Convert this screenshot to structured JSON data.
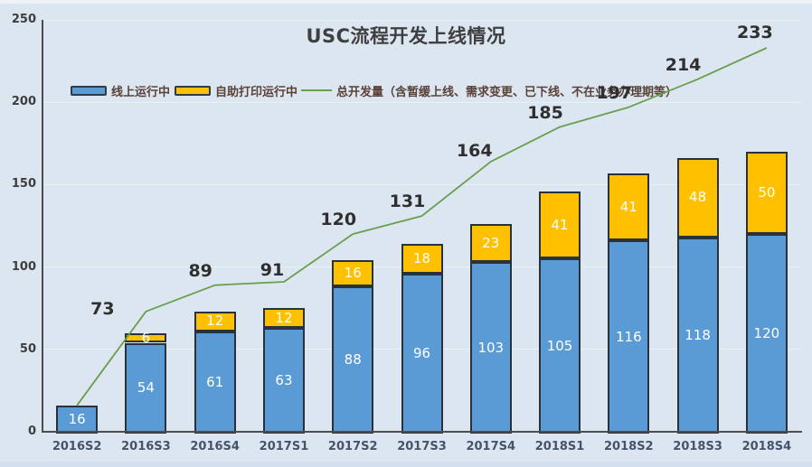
{
  "title": "USC流程开发上线情况",
  "legend": {
    "items": [
      {
        "label": "线上运行中",
        "swatch": "bar",
        "color": "#5b9bd5"
      },
      {
        "label": "自助打印运行中",
        "swatch": "bar",
        "color": "#ffc000"
      },
      {
        "label": "总开发量（含暂缓上线、需求变更、已下线、不在业务办理期等）",
        "swatch": "line",
        "color": "#6a9e4f"
      }
    ]
  },
  "chart_data": {
    "type": "bar",
    "subtype": "stacked-bars-with-total-line",
    "title": "USC流程开发上线情况",
    "categories": [
      "2016S2",
      "2016S3",
      "2016S4",
      "2017S1",
      "2017S2",
      "2017S3",
      "2017S4",
      "2018S1",
      "2018S2",
      "2018S3",
      "2018S4"
    ],
    "series": [
      {
        "name": "线上运行中",
        "type": "bar",
        "color": "#5b9bd5",
        "values": [
          16,
          54,
          61,
          63,
          88,
          96,
          103,
          105,
          116,
          118,
          120
        ]
      },
      {
        "name": "自助打印运行中",
        "type": "bar",
        "color": "#ffc000",
        "values": [
          0,
          6,
          12,
          12,
          16,
          18,
          23,
          41,
          41,
          48,
          50
        ]
      },
      {
        "name": "总开发量（含暂缓上线、需求变更、已下线、不在业务办理期等）",
        "type": "line",
        "color": "#6a9e4f",
        "values": [
          16,
          73,
          89,
          91,
          120,
          131,
          164,
          185,
          197,
          214,
          233
        ],
        "labels_from_index": 1
      }
    ],
    "xlabel": "",
    "ylabel": "",
    "ylim": [
      0,
      250
    ],
    "yticks": [
      0,
      50,
      100,
      150,
      200,
      250
    ],
    "grid": true,
    "legend_position": "top"
  }
}
